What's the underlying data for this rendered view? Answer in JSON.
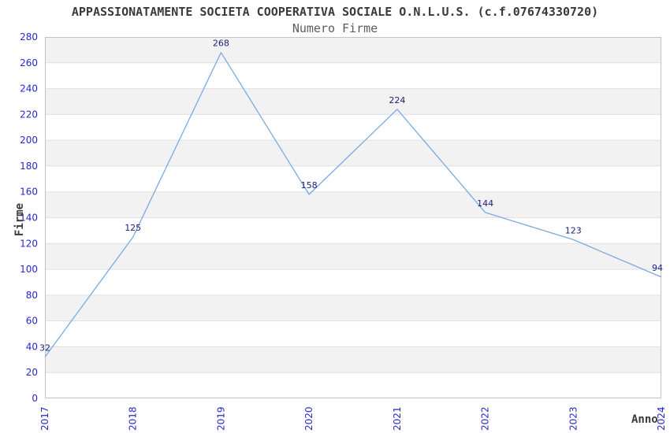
{
  "header": {
    "title": "APPASSIONATAMENTE SOCIETA COOPERATIVA SOCIALE O.N.L.U.S. (c.f.07674330720)",
    "subtitle": "Numero Firme"
  },
  "colors": {
    "line": "#78aae1",
    "tick_label": "#2626cd",
    "point_label": "#1b1b7e",
    "band_gray": "#f2f2f2",
    "band_white": "#ffffff",
    "grid_line": "#e0e0e0",
    "plot_border": "#c4c4c4",
    "title_text": "#3a3a3a",
    "subtitle_text": "#5c5c5c"
  },
  "chart_data": {
    "type": "line",
    "title": "APPASSIONATAMENTE SOCIETA COOPERATIVA SOCIALE O.N.L.U.S. (c.f.07674330720)",
    "subtitle": "Numero Firme",
    "xlabel": "Anno",
    "ylabel": "Firme",
    "categories": [
      "2017",
      "2018",
      "2019",
      "2020",
      "2021",
      "2022",
      "2023",
      "2024"
    ],
    "values": [
      32,
      125,
      268,
      158,
      224,
      144,
      123,
      94
    ],
    "ylim": [
      0,
      280
    ],
    "ytick_step": 20,
    "grid": true,
    "banded_background": true,
    "legend_position": "none",
    "point_labels": true,
    "x_tick_rotation": -90
  }
}
